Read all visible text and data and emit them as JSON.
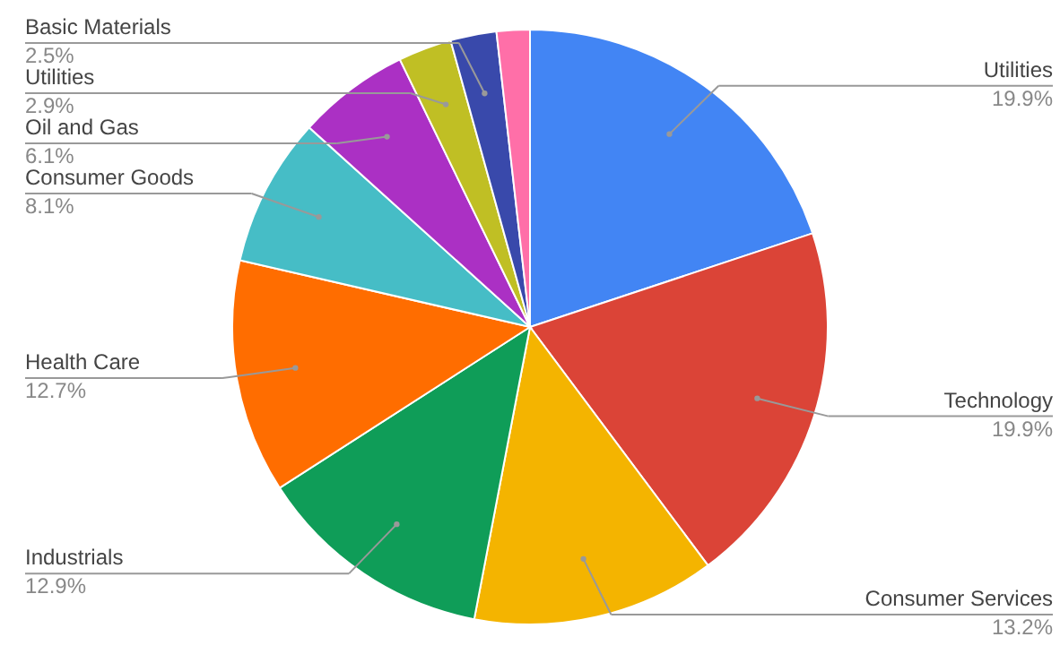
{
  "chart_data": {
    "type": "pie",
    "categories": [
      "Utilities",
      "Technology",
      "Consumer Services",
      "Industrials",
      "Health Care",
      "Consumer Goods",
      "Oil and Gas",
      "Utilities",
      "Basic Materials",
      null
    ],
    "values": [
      19.9,
      19.9,
      13.2,
      12.9,
      12.7,
      8.1,
      6.1,
      2.9,
      2.5,
      1.8
    ],
    "value_labels": [
      "19.9%",
      "19.9%",
      "13.2%",
      "12.9%",
      "12.7%",
      "8.1%",
      "6.1%",
      "2.9%",
      "2.5%",
      null
    ],
    "colors": [
      "#4285f4",
      "#db4437",
      "#f4b400",
      "#0f9d58",
      "#ff6d00",
      "#46bdc6",
      "#ab30c4",
      "#c0bf24",
      "#3949ab",
      "#ff6fa8"
    ]
  }
}
